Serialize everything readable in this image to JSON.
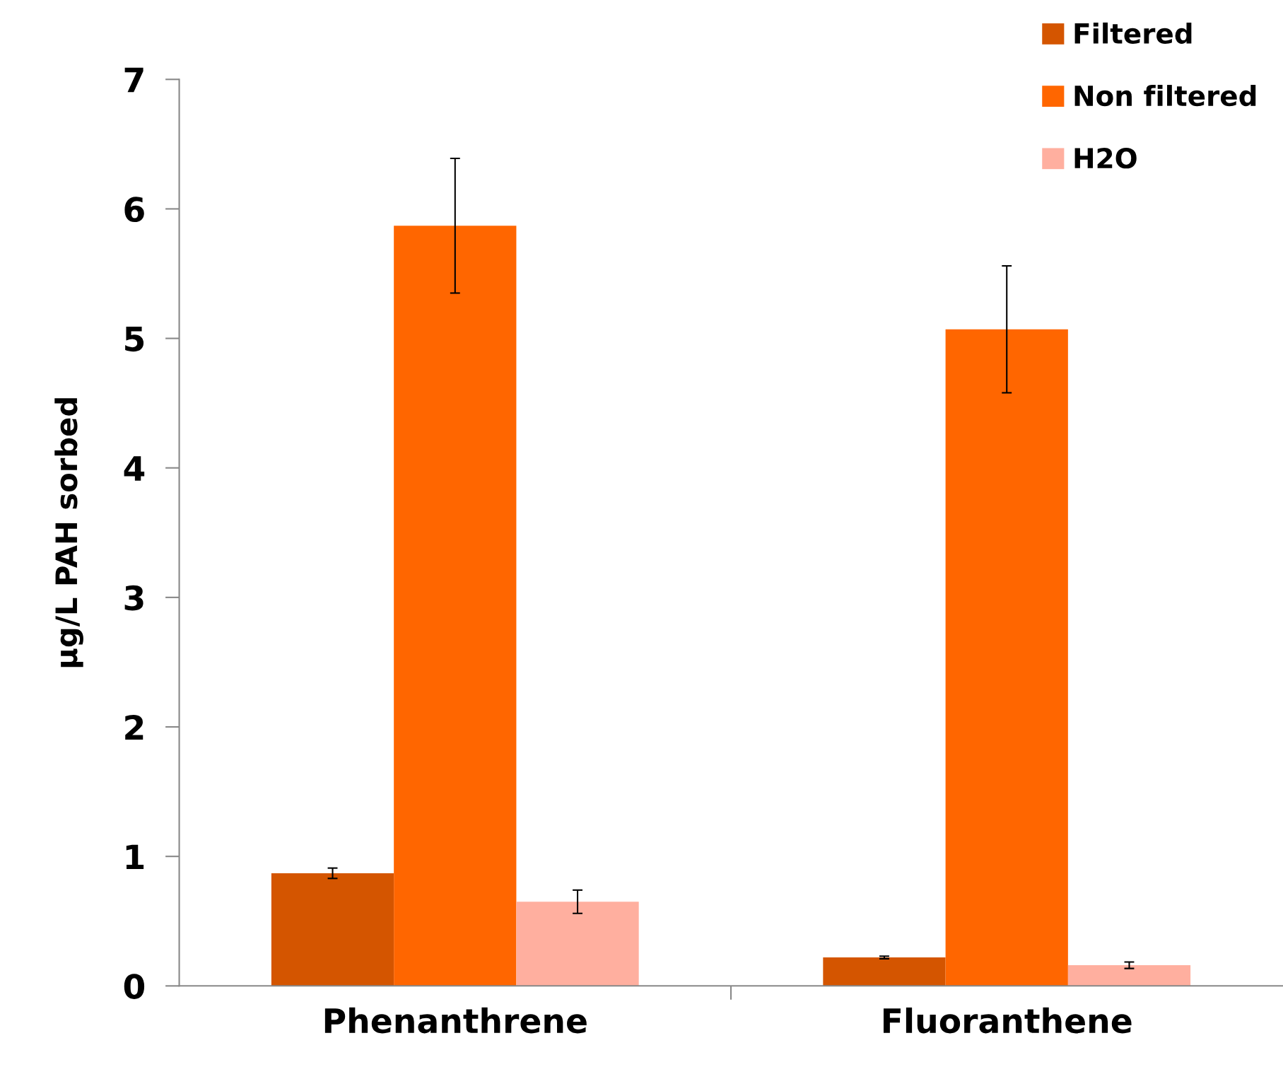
{
  "chart_data": {
    "type": "bar",
    "ylabel": "µg/L PAH sorbed",
    "categories": [
      "Phenanthrene",
      "Fluoranthene"
    ],
    "series": [
      {
        "name": "Filtered",
        "color": "#d45500",
        "values": [
          0.87,
          0.22
        ],
        "errors": [
          0.04,
          0.01
        ]
      },
      {
        "name": "Non filtered",
        "color": "#ff6600",
        "values": [
          5.87,
          5.07
        ],
        "errors": [
          0.52,
          0.49
        ]
      },
      {
        "name": "H2O",
        "color": "#ffaf9f",
        "values": [
          0.65,
          0.16
        ],
        "errors": [
          0.09,
          0.025
        ]
      }
    ],
    "ylim": [
      0,
      7
    ],
    "yticks": [
      0,
      1,
      2,
      3,
      4,
      5,
      6,
      7
    ],
    "grid": false,
    "legend": "top right"
  }
}
